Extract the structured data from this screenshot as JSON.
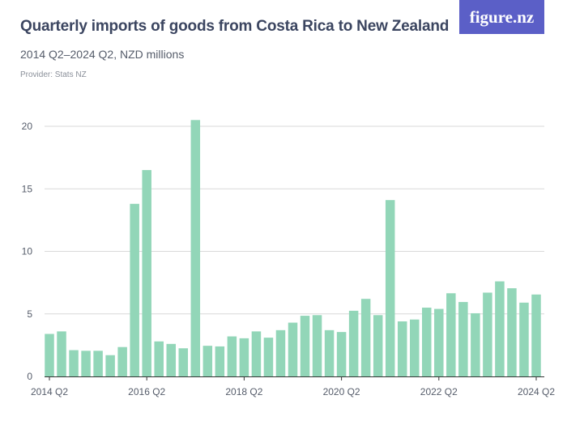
{
  "header": {
    "title": "Quarterly imports of goods from Costa Rica to New Zealand",
    "subtitle": "2014 Q2–2024 Q2, NZD millions",
    "provider": "Provider: Stats NZ",
    "logo_text": "figure.nz"
  },
  "colors": {
    "bar": "#92d6b8",
    "gridline": "#d9d9d9",
    "axis": "#333333",
    "logo_bg": "#5b5fc7"
  },
  "chart_data": {
    "type": "bar",
    "title": "Quarterly imports of goods from Costa Rica to New Zealand",
    "subtitle": "2014 Q2–2024 Q2, NZD millions",
    "xlabel": "",
    "ylabel": "",
    "ylim": [
      0,
      20
    ],
    "yticks": [
      0,
      5,
      10,
      15,
      20
    ],
    "grid": true,
    "categories": [
      "2014 Q2",
      "2014 Q3",
      "2014 Q4",
      "2015 Q1",
      "2015 Q2",
      "2015 Q3",
      "2015 Q4",
      "2016 Q1",
      "2016 Q2",
      "2016 Q3",
      "2016 Q4",
      "2017 Q1",
      "2017 Q2",
      "2017 Q3",
      "2017 Q4",
      "2018 Q1",
      "2018 Q2",
      "2018 Q3",
      "2018 Q4",
      "2019 Q1",
      "2019 Q2",
      "2019 Q3",
      "2019 Q4",
      "2020 Q1",
      "2020 Q2",
      "2020 Q3",
      "2020 Q4",
      "2021 Q1",
      "2021 Q2",
      "2021 Q3",
      "2021 Q4",
      "2022 Q1",
      "2022 Q2",
      "2022 Q3",
      "2022 Q4",
      "2023 Q1",
      "2023 Q2",
      "2023 Q3",
      "2023 Q4",
      "2024 Q1",
      "2024 Q2"
    ],
    "values": [
      3.4,
      3.6,
      2.1,
      2.05,
      2.05,
      1.7,
      2.35,
      13.8,
      16.5,
      2.8,
      2.6,
      2.25,
      20.5,
      2.45,
      2.4,
      3.2,
      3.05,
      3.6,
      3.1,
      3.7,
      4.3,
      4.85,
      4.9,
      3.7,
      3.55,
      5.25,
      6.2,
      4.9,
      14.1,
      4.4,
      4.55,
      5.5,
      5.4,
      6.65,
      5.95,
      5.05,
      6.7,
      7.6,
      7.05,
      5.9,
      6.55
    ],
    "xtick_labels": [
      {
        "index": 0,
        "label": "2014 Q2"
      },
      {
        "index": 8,
        "label": "2016 Q2"
      },
      {
        "index": 16,
        "label": "2018 Q2"
      },
      {
        "index": 24,
        "label": "2020 Q2"
      },
      {
        "index": 32,
        "label": "2022 Q2"
      },
      {
        "index": 40,
        "label": "2024 Q2"
      }
    ]
  }
}
